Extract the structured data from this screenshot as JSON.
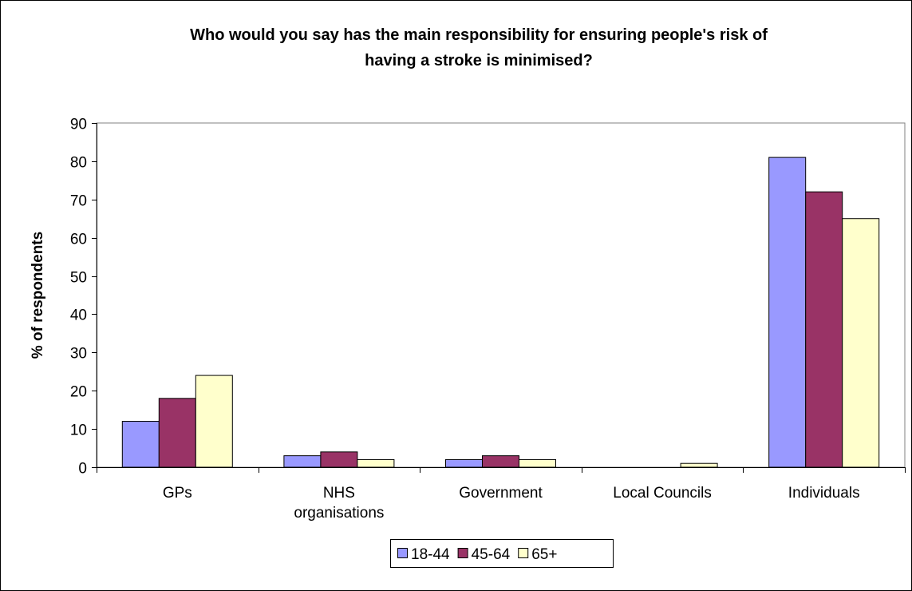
{
  "chart_data": {
    "type": "bar",
    "title_lines": [
      "Who would you say has the main responsibility for ensuring people's risk of",
      "having a stroke is minimised?"
    ],
    "xlabel": "",
    "ylabel": "% of respondents",
    "ylim": [
      0,
      90
    ],
    "yticks": [
      0,
      10,
      20,
      30,
      40,
      50,
      60,
      70,
      80,
      90
    ],
    "grid": true,
    "legend_position": "bottom",
    "categories": [
      [
        "GPs"
      ],
      [
        "NHS",
        "organisations"
      ],
      [
        "Government"
      ],
      [
        "Local Councils"
      ],
      [
        "Individuals"
      ]
    ],
    "series": [
      {
        "name": "18-44",
        "color": "#9999ff",
        "values": [
          12,
          3,
          2,
          0,
          81
        ]
      },
      {
        "name": "45-64",
        "color": "#993366",
        "values": [
          18,
          4,
          3,
          0,
          72
        ]
      },
      {
        "name": "65+",
        "color": "#ffffcc",
        "values": [
          24,
          2,
          2,
          1,
          65
        ]
      }
    ]
  }
}
